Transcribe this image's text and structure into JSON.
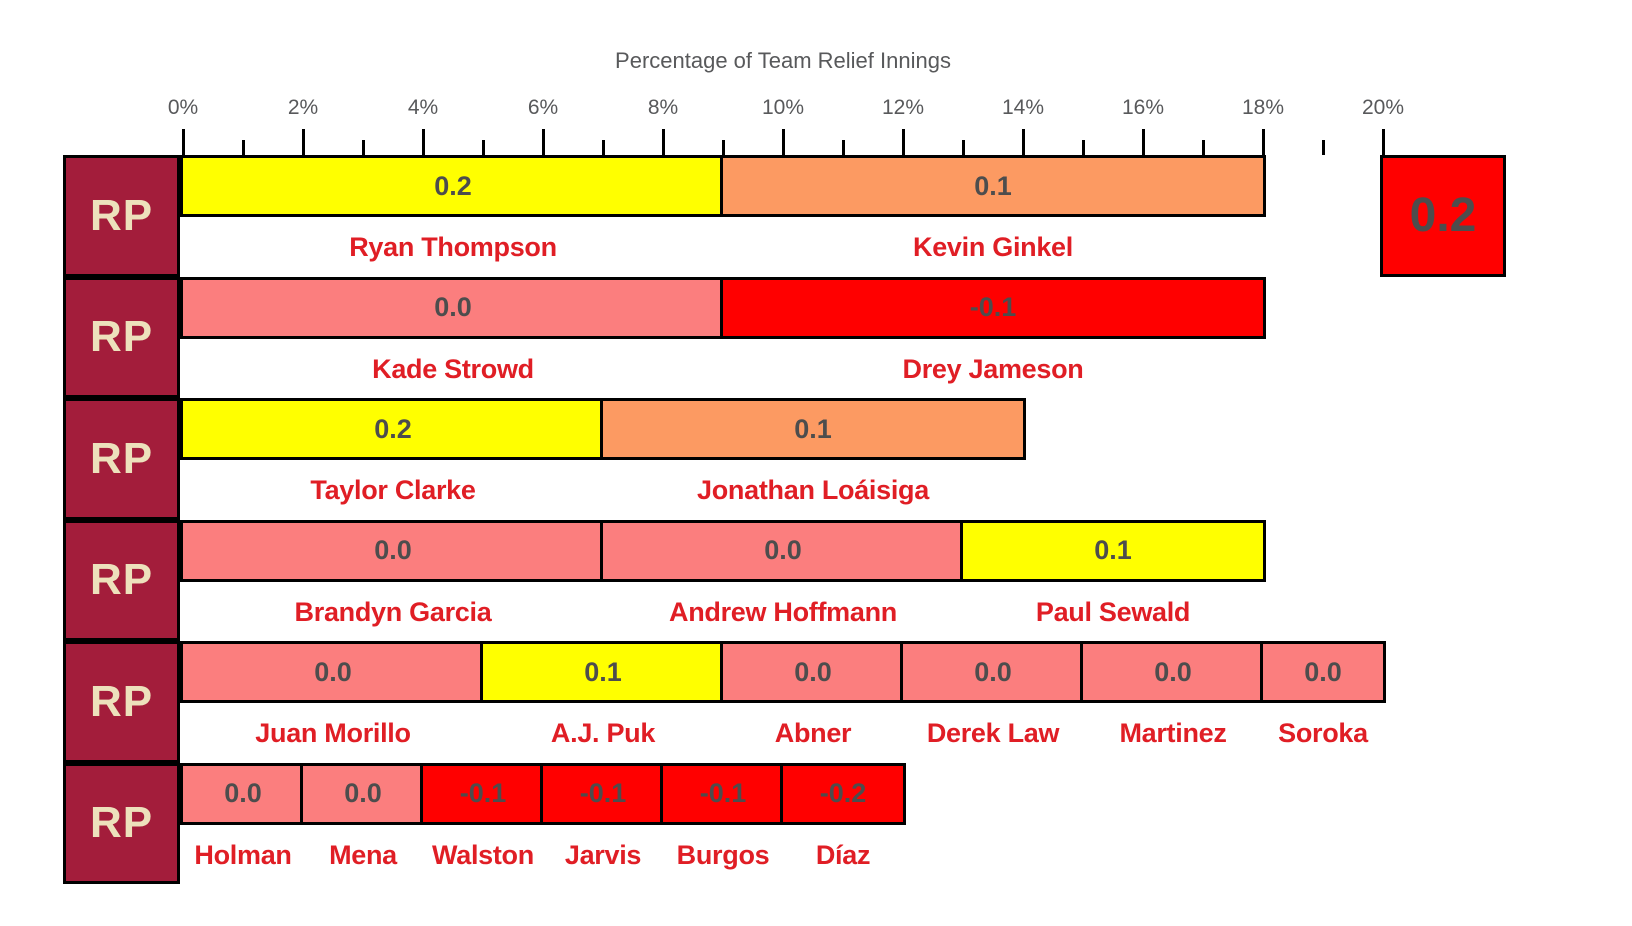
{
  "colors": {
    "maroon": "#a31d3b",
    "cream": "#ede1bc",
    "yellow": "#ffff00",
    "orange": "#fc9a62",
    "pink": "#fb7e7e",
    "red": "#ff0000",
    "name_red": "#e01e25",
    "value_gray": "#4d4d4d",
    "axis_gray": "#58595b",
    "border_black": "#000000"
  },
  "chart_data": {
    "type": "bar",
    "orientation": "horizontal",
    "stacked": true,
    "title": "Percentage of Team Relief Innings",
    "xlabel": "Percentage of Team Relief Innings",
    "ylabel": "",
    "xlim": [
      0,
      20
    ],
    "x_axis": {
      "min_pct": 0,
      "max_pct": 20,
      "minor_tick_step_pct": 1,
      "label_step_pct": 2,
      "labels": [
        "0%",
        "2%",
        "4%",
        "6%",
        "8%",
        "10%",
        "12%",
        "14%",
        "16%",
        "18%",
        "20%"
      ]
    },
    "row_label": "RP",
    "rows": [
      {
        "segments": [
          {
            "player": "Ryan Thompson",
            "value": "0.2",
            "start_pct": 0,
            "end_pct": 9,
            "color": "yellow"
          },
          {
            "player": "Kevin Ginkel",
            "value": "0.1",
            "start_pct": 9,
            "end_pct": 18,
            "color": "orange"
          }
        ]
      },
      {
        "segments": [
          {
            "player": "Kade Strowd",
            "value": "0.0",
            "start_pct": 0,
            "end_pct": 9,
            "color": "pink"
          },
          {
            "player": "Drey Jameson",
            "value": "-0.1",
            "start_pct": 9,
            "end_pct": 18,
            "color": "red"
          }
        ]
      },
      {
        "segments": [
          {
            "player": "Taylor Clarke",
            "value": "0.2",
            "start_pct": 0,
            "end_pct": 7,
            "color": "yellow"
          },
          {
            "player": "Jonathan Loáisiga",
            "value": "0.1",
            "start_pct": 7,
            "end_pct": 14,
            "color": "orange"
          }
        ]
      },
      {
        "segments": [
          {
            "player": "Brandyn Garcia",
            "value": "0.0",
            "start_pct": 0,
            "end_pct": 7,
            "color": "pink"
          },
          {
            "player": "Andrew Hoffmann",
            "value": "0.0",
            "start_pct": 7,
            "end_pct": 13,
            "color": "pink"
          },
          {
            "player": "Paul Sewald",
            "value": "0.1",
            "start_pct": 13,
            "end_pct": 18,
            "color": "yellow"
          }
        ]
      },
      {
        "segments": [
          {
            "player": "Juan Morillo",
            "value": "0.0",
            "start_pct": 0,
            "end_pct": 5,
            "color": "pink"
          },
          {
            "player": "A.J. Puk",
            "value": "0.1",
            "start_pct": 5,
            "end_pct": 9,
            "color": "yellow"
          },
          {
            "player": "Abner",
            "value": "0.0",
            "start_pct": 9,
            "end_pct": 12,
            "color": "pink"
          },
          {
            "player": "Derek Law",
            "value": "0.0",
            "start_pct": 12,
            "end_pct": 15,
            "color": "pink"
          },
          {
            "player": "Martinez",
            "value": "0.0",
            "start_pct": 15,
            "end_pct": 18,
            "color": "pink"
          },
          {
            "player": "Soroka",
            "value": "0.0",
            "start_pct": 18,
            "end_pct": 20,
            "color": "pink"
          }
        ]
      },
      {
        "segments": [
          {
            "player": "Holman",
            "value": "0.0",
            "start_pct": 0,
            "end_pct": 2,
            "color": "pink"
          },
          {
            "player": "Mena",
            "value": "0.0",
            "start_pct": 2,
            "end_pct": 4,
            "color": "pink"
          },
          {
            "player": "Walston",
            "value": "-0.1",
            "start_pct": 4,
            "end_pct": 6,
            "color": "red"
          },
          {
            "player": "Jarvis",
            "value": "-0.1",
            "start_pct": 6,
            "end_pct": 8,
            "color": "red"
          },
          {
            "player": "Burgos",
            "value": "-0.1",
            "start_pct": 8,
            "end_pct": 10,
            "color": "red"
          },
          {
            "player": "Díaz",
            "value": "-0.2",
            "start_pct": 10,
            "end_pct": 12,
            "color": "red"
          }
        ]
      }
    ],
    "detached_segment": {
      "row_index": 0,
      "player": "",
      "value": "0.2",
      "start_pct": 20,
      "end_pct": 22,
      "color": "red"
    }
  }
}
